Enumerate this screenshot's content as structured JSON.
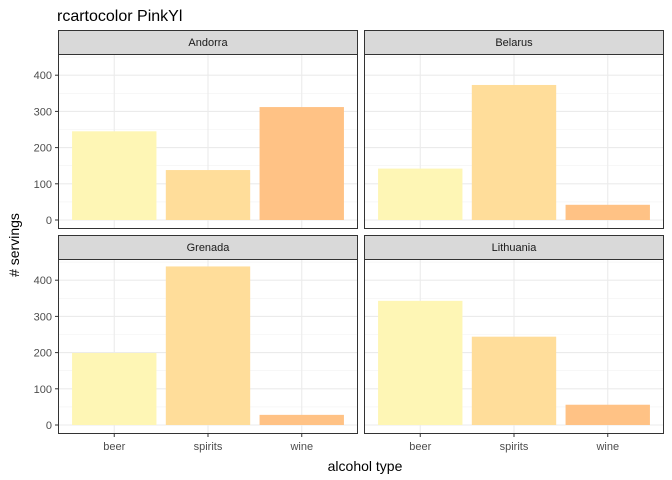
{
  "chart_data": {
    "type": "bar",
    "title": "rcartocolor PinkYl",
    "xlabel": "alcohol type",
    "ylabel": "# servings",
    "categories": [
      "beer",
      "spirits",
      "wine"
    ],
    "ylim": [
      0,
      480
    ],
    "yticks": [
      0,
      100,
      200,
      300,
      400
    ],
    "grid": true,
    "bar_colors": {
      "beer": "#FEF6B5",
      "spirits": "#FFDD9A",
      "wine": "#FFC285"
    },
    "strip_fill": "#D9D9D9",
    "panels": [
      {
        "name": "Andorra",
        "values": [
          245,
          138,
          312
        ]
      },
      {
        "name": "Belarus",
        "values": [
          142,
          373,
          42
        ]
      },
      {
        "name": "Grenada",
        "values": [
          199,
          438,
          28
        ]
      },
      {
        "name": "Lithuania",
        "values": [
          343,
          244,
          56
        ]
      }
    ]
  }
}
